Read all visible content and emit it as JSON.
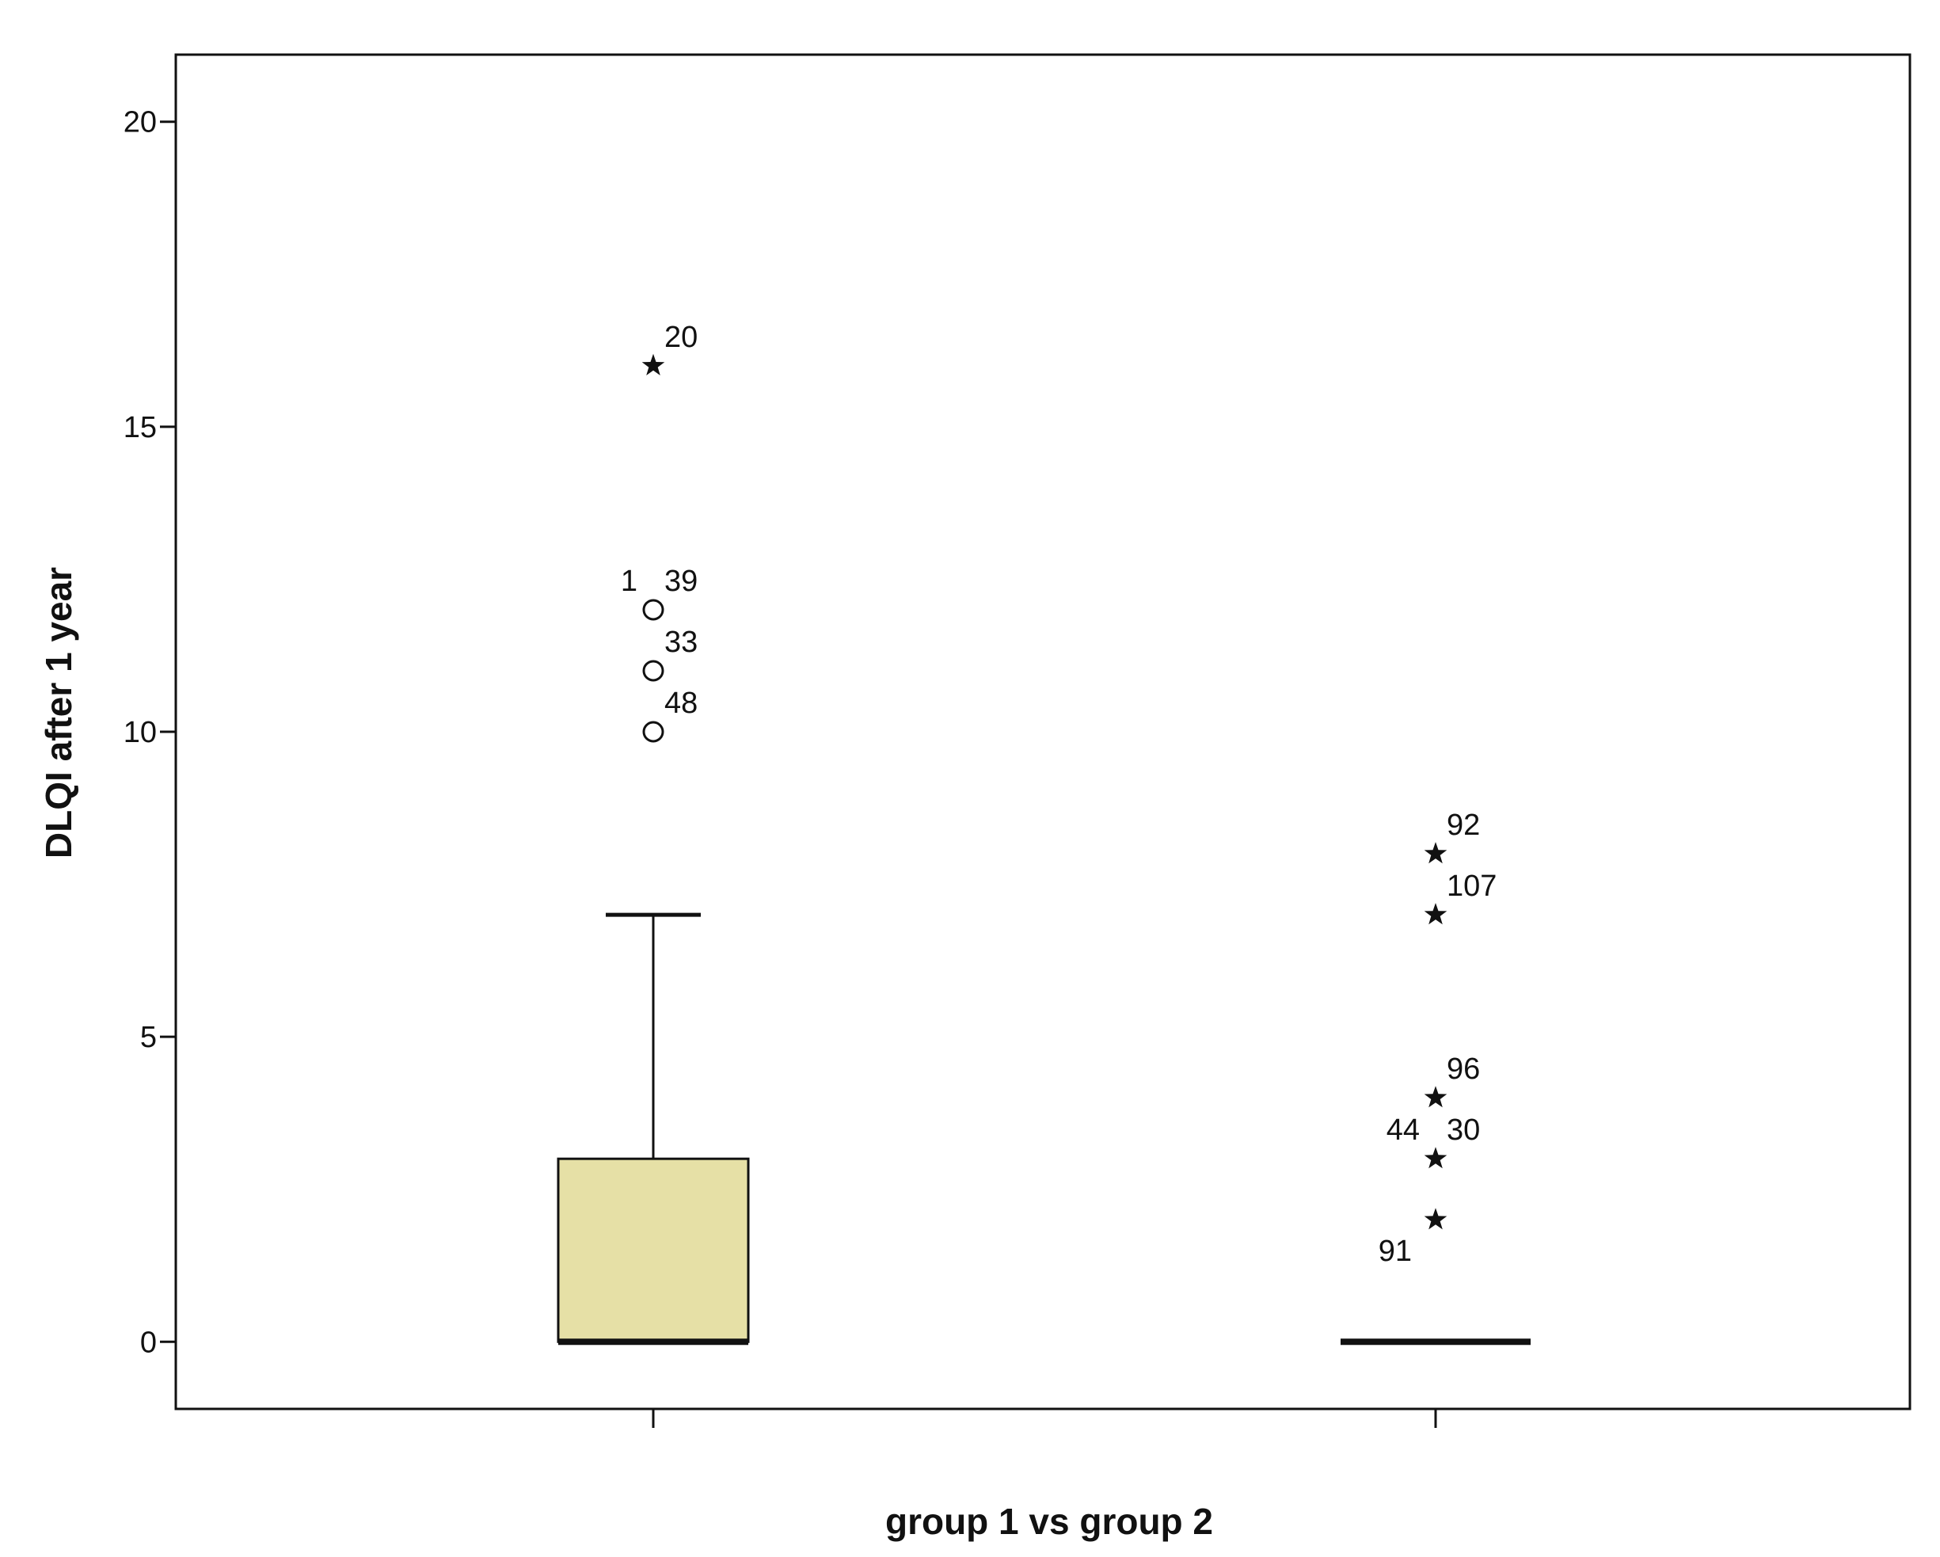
{
  "chart_data": {
    "type": "boxplot",
    "xlabel": "group 1 vs group 2",
    "ylabel": "DLQI after 1 year",
    "ylim": [
      -1.1,
      21.1
    ],
    "yticks": [
      0,
      5,
      10,
      15,
      20
    ],
    "grid": false,
    "legend": "none",
    "box_fill": "#E6E0A6",
    "groups": [
      {
        "q1": 0,
        "median": 0,
        "q3": 3,
        "whisker_low": 0,
        "whisker_high": 7,
        "outliers": [
          {
            "value": 16,
            "marker": "star",
            "labels": [
              "20"
            ]
          },
          {
            "value": 12,
            "marker": "circle",
            "labels": [
              "1",
              "39"
            ]
          },
          {
            "value": 11,
            "marker": "circle",
            "labels": [
              "33"
            ]
          },
          {
            "value": 10,
            "marker": "circle",
            "labels": [
              "48"
            ]
          }
        ]
      },
      {
        "q1": 0,
        "median": 0,
        "q3": 0,
        "whisker_low": 0,
        "whisker_high": 0,
        "outliers": [
          {
            "value": 8,
            "marker": "star",
            "labels": [
              "92"
            ]
          },
          {
            "value": 7,
            "marker": "star",
            "labels": [
              "107"
            ]
          },
          {
            "value": 4,
            "marker": "star",
            "labels": [
              "96"
            ]
          },
          {
            "value": 3,
            "marker": "star",
            "labels": [
              "44",
              "30"
            ]
          },
          {
            "value": 2,
            "marker": "star",
            "labels": [
              "91"
            ]
          }
        ]
      }
    ]
  }
}
